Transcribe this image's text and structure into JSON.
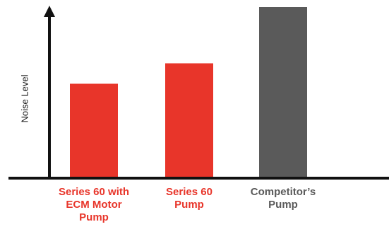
{
  "chart_data": {
    "type": "bar",
    "title": "",
    "xlabel": "",
    "ylabel": "Noise Level",
    "categories": [
      "Series 60 with\nECM Motor\nPump",
      "Series 60\nPump",
      "Competitor’s\nPump"
    ],
    "values": [
      55,
      67,
      100
    ],
    "ylim": [
      0,
      100
    ],
    "grid": false,
    "legend": "none",
    "colors": {
      "highlight": "#e8352a",
      "competitor": "#5a5a5a",
      "axis": "#111111"
    },
    "bar_colors": [
      "#e8352a",
      "#e8352a",
      "#5a5a5a"
    ]
  }
}
